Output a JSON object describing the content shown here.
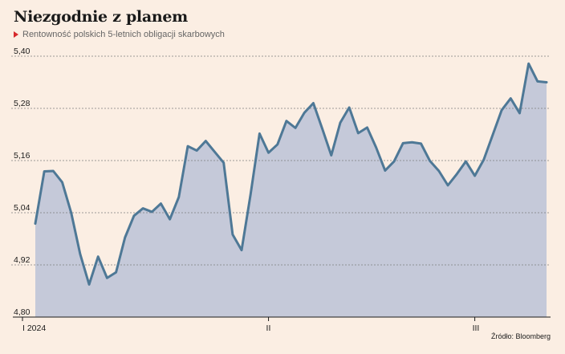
{
  "header": {
    "title": "Niezgodnie z planem",
    "subtitle": "Rentowność polskich 5-letnich obligacji skarbowych"
  },
  "footer": {
    "source": "Źródło: Bloomberg"
  },
  "colors": {
    "background": "#fbeee3",
    "line": "#4e7896",
    "area": "#c5c9d9",
    "marker": "#d6282b"
  },
  "chart_data": {
    "type": "area",
    "title": "Niezgodnie z planem",
    "subtitle": "Rentowność polskich 5-letnich obligacji skarbowych",
    "xlabel": "",
    "ylabel": "",
    "ylim": [
      4.8,
      5.4
    ],
    "yticks": [
      "5,40",
      "5,28",
      "5,16",
      "5,04",
      "4,92",
      "4,80"
    ],
    "ytick_values": [
      5.4,
      5.28,
      5.16,
      5.04,
      4.92,
      4.8
    ],
    "xticks": [
      "I 2024",
      "II",
      "III"
    ],
    "xtick_index": [
      0,
      26,
      49
    ],
    "grid": "horizontal dashed",
    "legend": "none",
    "series": [
      {
        "values": [
          5.015,
          5.135,
          5.136,
          5.11,
          5.04,
          4.945,
          4.875,
          4.939,
          4.89,
          4.903,
          4.983,
          5.033,
          5.05,
          5.042,
          5.061,
          5.025,
          5.076,
          5.193,
          5.183,
          5.205,
          5.18,
          5.155,
          4.99,
          4.954,
          5.082,
          5.222,
          5.178,
          5.197,
          5.251,
          5.235,
          5.27,
          5.292,
          5.233,
          5.172,
          5.247,
          5.282,
          5.223,
          5.236,
          5.19,
          5.137,
          5.158,
          5.2,
          5.202,
          5.199,
          5.159,
          5.136,
          5.103,
          5.129,
          5.158,
          5.125,
          5.162,
          5.219,
          5.276,
          5.303,
          5.269,
          5.383,
          5.342,
          5.34
        ]
      }
    ]
  }
}
